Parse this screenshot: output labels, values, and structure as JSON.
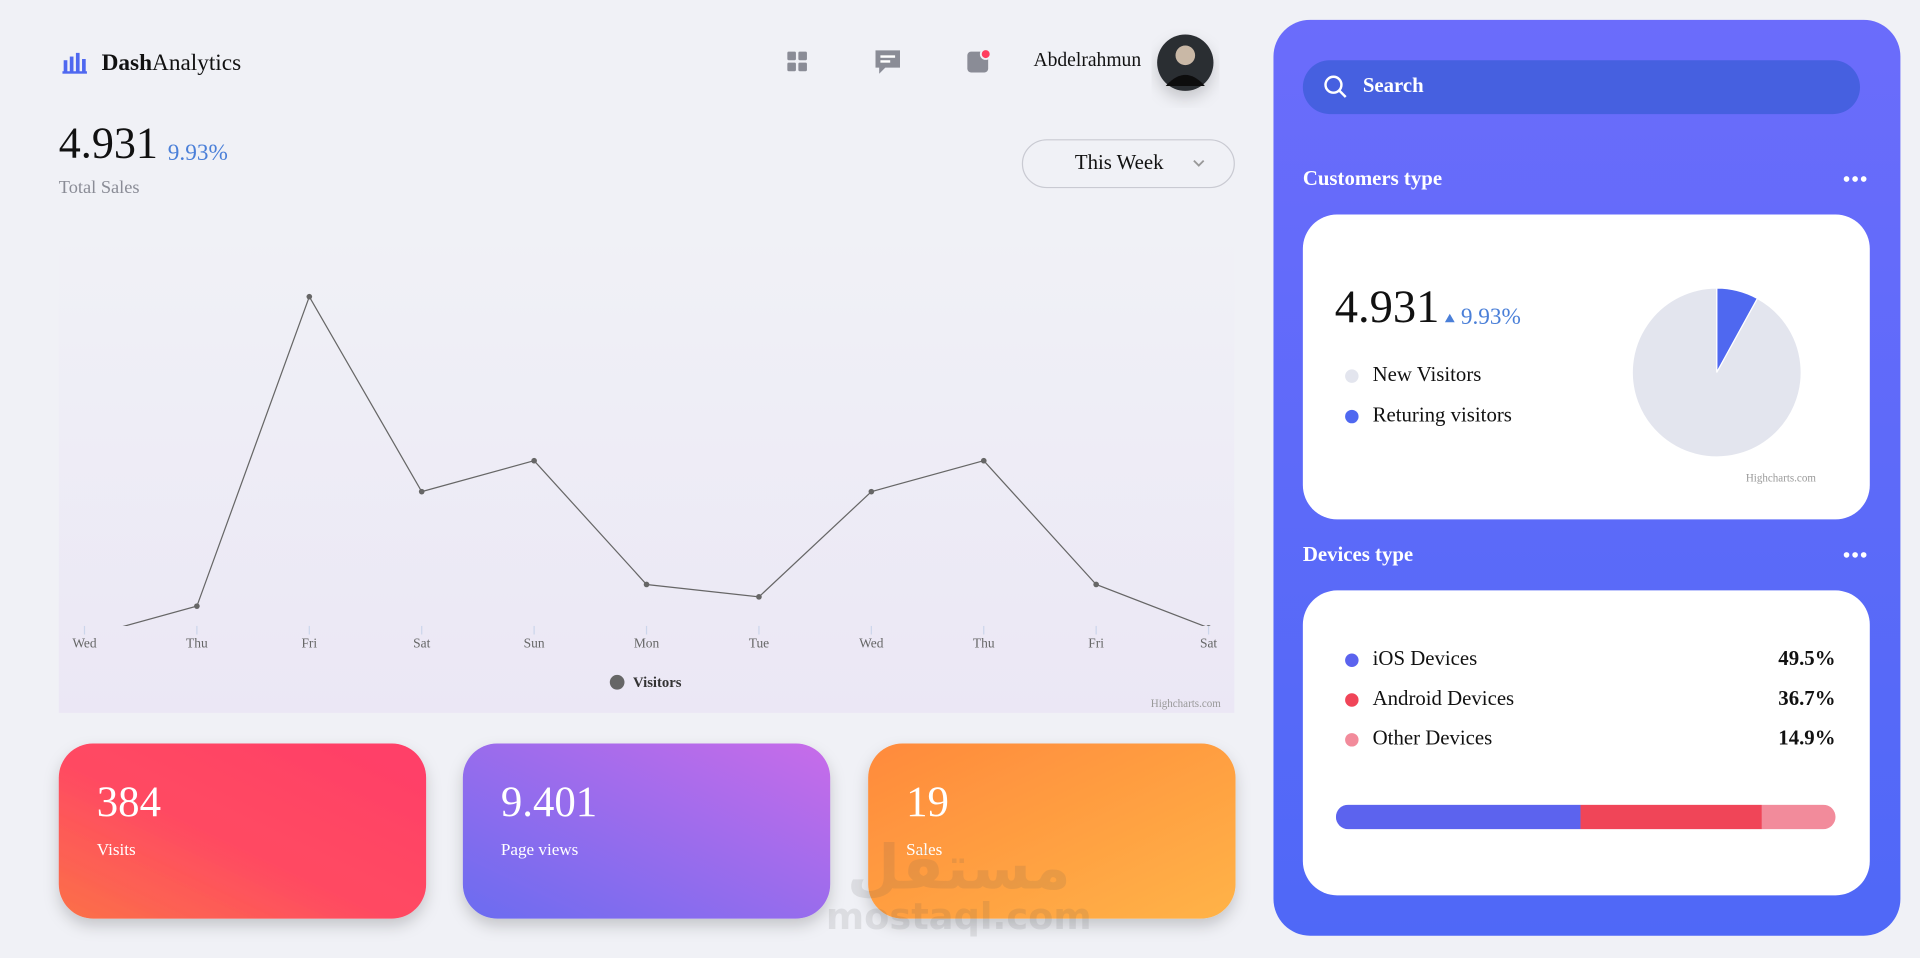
{
  "header": {
    "logo_bold": "Dash",
    "logo_rest": "Analytics",
    "user_name": "Abdelrahmun"
  },
  "summary": {
    "total": "4.931",
    "change": "9.93%",
    "label": "Total Sales",
    "period": "This Week"
  },
  "visitors_chart": {
    "type": "line",
    "categories": [
      "Wed",
      "Thu",
      "Fri",
      "Sat",
      "Sun",
      "Mon",
      "Tue",
      "Wed",
      "Thu",
      "Fri",
      "Sat"
    ],
    "series": [
      {
        "name": "Visitors",
        "color": "#666666",
        "values": [
          -0.4,
          0.6,
          10.6,
          4.3,
          5.3,
          1.3,
          0.9,
          4.3,
          5.3,
          1.3,
          -0.1
        ]
      }
    ],
    "ylim": [
      0,
      11
    ],
    "credit": "Highcharts.com"
  },
  "stats": [
    {
      "value": "384",
      "label": "Visits"
    },
    {
      "value": "9.401",
      "label": "Page views"
    },
    {
      "value": "19",
      "label": "Sales"
    }
  ],
  "sidebar": {
    "search_placeholder": "Search",
    "customers_title": "Customers type",
    "devices_title": "Devices type"
  },
  "customers_chart": {
    "type": "pie",
    "total": "4.931",
    "change": "9.93%",
    "categories": [
      "New Visitors",
      "Returing visitors"
    ],
    "values": [
      92,
      8
    ],
    "colors": [
      "#e3e5ee",
      "#4f68f0"
    ],
    "credit": "Highcharts.com"
  },
  "devices_chart": {
    "type": "bar",
    "categories": [
      "iOS Devices",
      "Android Devices",
      "Other Devices"
    ],
    "values": [
      49.5,
      36.7,
      14.9
    ],
    "value_labels": [
      "49.5%",
      "36.7%",
      "14.9%"
    ],
    "colors": [
      "#5b63ee",
      "#f04558",
      "#f28b9b"
    ]
  },
  "watermark": {
    "arabic": "مستقل",
    "latin": "mostaql.com"
  }
}
